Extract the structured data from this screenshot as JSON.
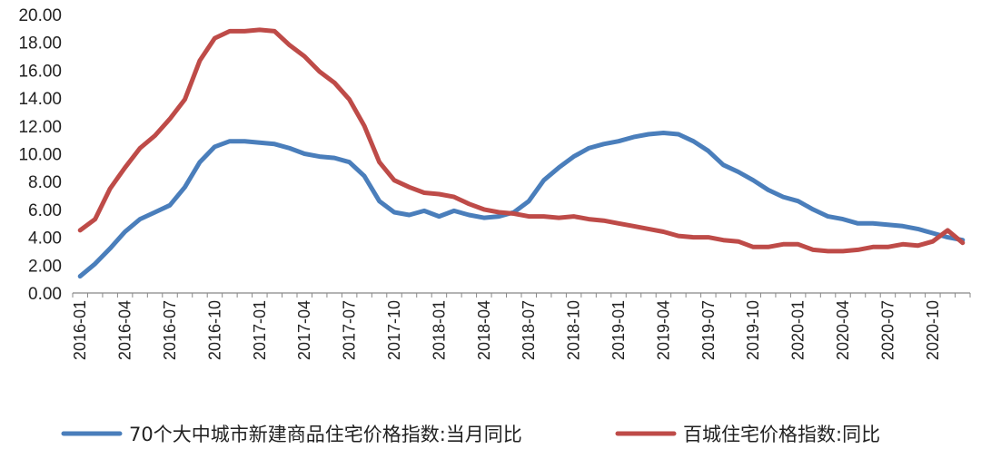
{
  "chart_data": {
    "type": "line",
    "title": "",
    "xlabel": "",
    "ylabel": "",
    "ylim": [
      0,
      20
    ],
    "y_ticks": [
      "0.00",
      "2.00",
      "4.00",
      "6.00",
      "8.00",
      "10.00",
      "12.00",
      "14.00",
      "16.00",
      "18.00",
      "20.00"
    ],
    "grid": false,
    "legend_position": "bottom",
    "x_tick_labels": [
      "2016-01",
      "2016-04",
      "2016-07",
      "2016-10",
      "2017-01",
      "2017-04",
      "2017-07",
      "2017-10",
      "2018-01",
      "2018-04",
      "2018-07",
      "2018-10",
      "2019-01",
      "2019-04",
      "2019-07",
      "2019-10",
      "2020-01",
      "2020-04",
      "2020-07",
      "2020-10"
    ],
    "x": [
      "2016-01",
      "2016-02",
      "2016-03",
      "2016-04",
      "2016-05",
      "2016-06",
      "2016-07",
      "2016-08",
      "2016-09",
      "2016-10",
      "2016-11",
      "2016-12",
      "2017-01",
      "2017-02",
      "2017-03",
      "2017-04",
      "2017-05",
      "2017-06",
      "2017-07",
      "2017-08",
      "2017-09",
      "2017-10",
      "2017-11",
      "2017-12",
      "2018-01",
      "2018-02",
      "2018-03",
      "2018-04",
      "2018-05",
      "2018-06",
      "2018-07",
      "2018-08",
      "2018-09",
      "2018-10",
      "2018-11",
      "2018-12",
      "2019-01",
      "2019-02",
      "2019-03",
      "2019-04",
      "2019-05",
      "2019-06",
      "2019-07",
      "2019-08",
      "2019-09",
      "2019-10",
      "2019-11",
      "2019-12",
      "2020-01",
      "2020-02",
      "2020-03",
      "2020-04",
      "2020-05",
      "2020-06",
      "2020-07",
      "2020-08",
      "2020-09",
      "2020-10",
      "2020-11",
      "2020-12"
    ],
    "series": [
      {
        "name": "70个大中城市新建商品住宅价格指数:当月同比",
        "color": "#4A7EBB",
        "values": [
          1.2,
          2.1,
          3.2,
          4.4,
          5.3,
          5.8,
          6.3,
          7.6,
          9.4,
          10.5,
          10.9,
          10.9,
          10.8,
          10.7,
          10.4,
          10.0,
          9.8,
          9.7,
          9.4,
          8.4,
          6.6,
          5.8,
          5.6,
          5.9,
          5.5,
          5.9,
          5.6,
          5.4,
          5.5,
          5.8,
          6.6,
          8.1,
          9.0,
          9.8,
          10.4,
          10.7,
          10.9,
          11.2,
          11.4,
          11.5,
          11.4,
          10.9,
          10.2,
          9.2,
          8.7,
          8.1,
          7.4,
          6.9,
          6.6,
          6.0,
          5.5,
          5.3,
          5.0,
          5.0,
          4.9,
          4.8,
          4.6,
          4.3,
          4.0,
          3.8
        ]
      },
      {
        "name": "百城住宅价格指数:同比",
        "color": "#BE4B48",
        "values": [
          4.5,
          5.3,
          7.5,
          9.0,
          10.4,
          11.3,
          12.5,
          13.9,
          16.7,
          18.3,
          18.8,
          18.8,
          18.9,
          18.8,
          17.8,
          17.0,
          15.9,
          15.1,
          13.9,
          12.0,
          9.4,
          8.1,
          7.6,
          7.2,
          7.1,
          6.9,
          6.4,
          6.0,
          5.8,
          5.7,
          5.5,
          5.5,
          5.4,
          5.5,
          5.3,
          5.2,
          5.0,
          4.8,
          4.6,
          4.4,
          4.1,
          4.0,
          4.0,
          3.8,
          3.7,
          3.3,
          3.3,
          3.5,
          3.5,
          3.1,
          3.0,
          3.0,
          3.1,
          3.3,
          3.3,
          3.5,
          3.4,
          3.7,
          4.5,
          3.6
        ]
      }
    ]
  }
}
